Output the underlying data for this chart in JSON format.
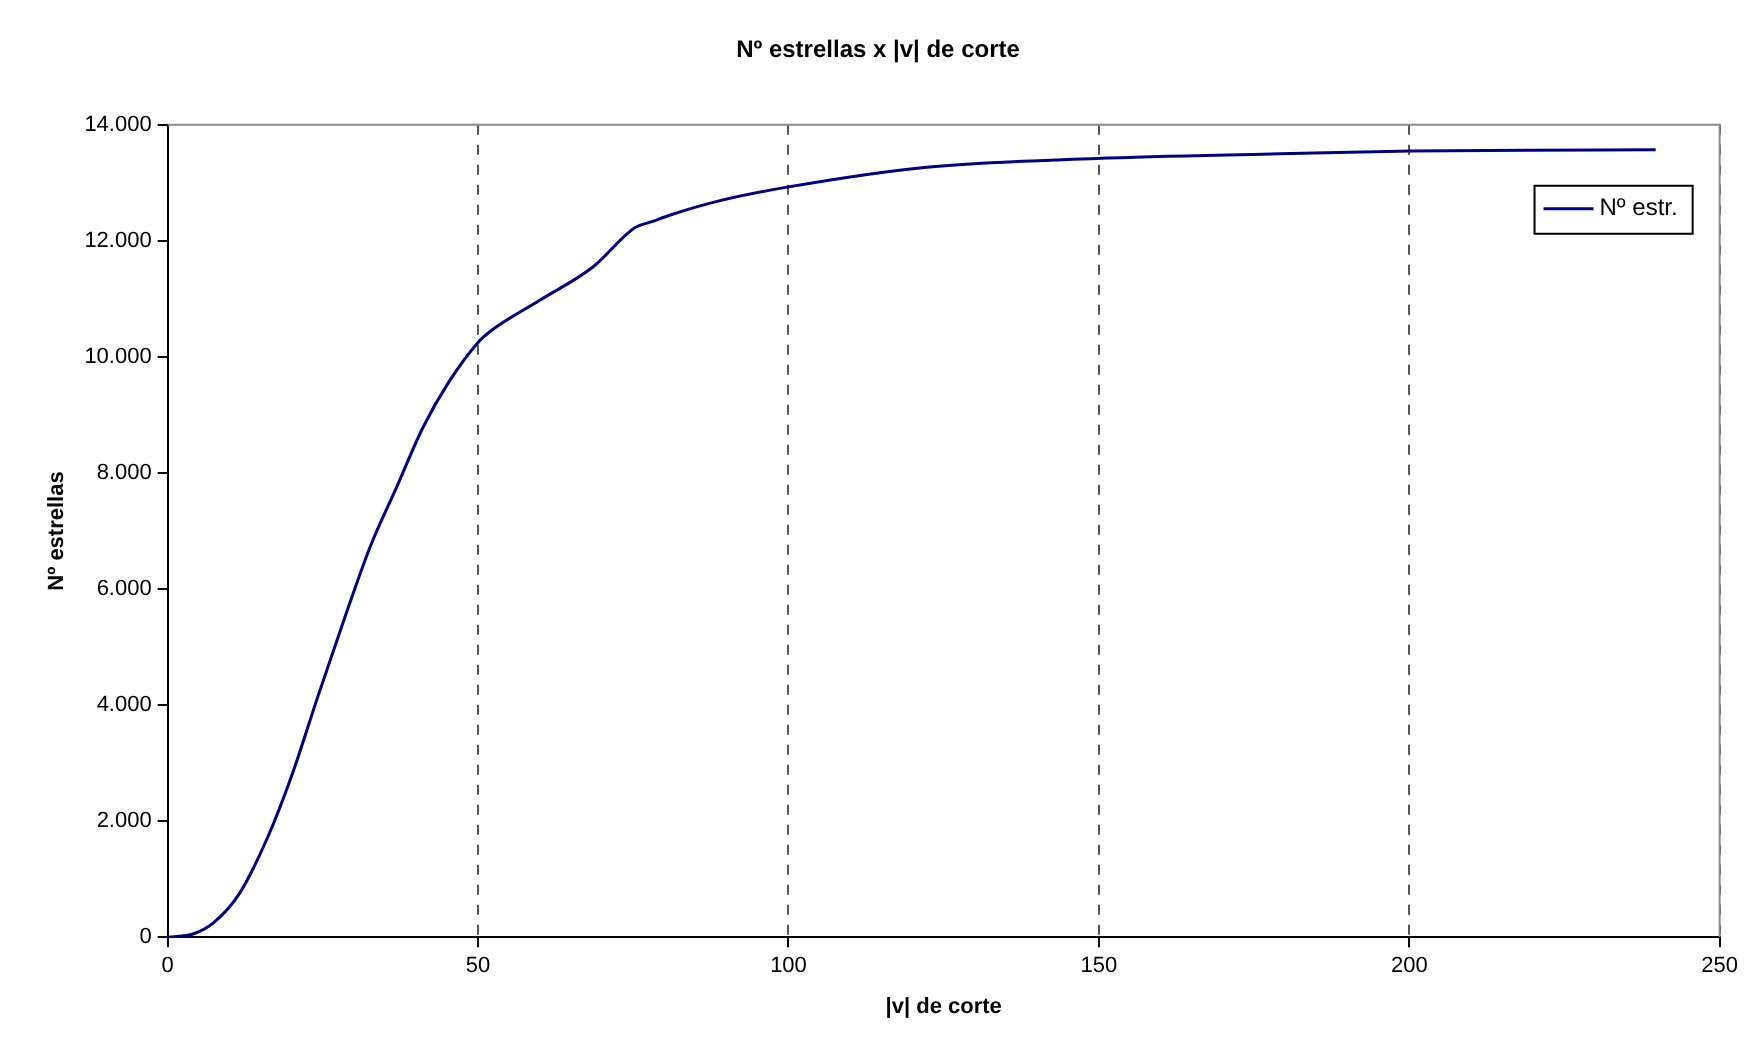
{
  "chart_data": {
    "type": "line",
    "title": "Nº estrellas x |v| de corte",
    "xlabel": "|v| de corte",
    "ylabel": "Nº estrellas",
    "series": [
      {
        "name": "Nº estr.",
        "color": "#000080",
        "x": [
          0,
          4.2,
          7.4,
          11.6,
          16.3,
          20,
          24.2,
          28.5,
          32.7,
          36.9,
          41.1,
          45.3,
          50,
          52.1,
          60,
          68.5,
          75.3,
          78,
          81.1,
          88.5,
          100,
          122.3,
          149.6,
          179.2,
          200.2,
          239.7
        ],
        "values": [
          0,
          60,
          250,
          760,
          1770,
          2790,
          4150,
          5500,
          6750,
          7760,
          8780,
          9570,
          10250,
          10450,
          10980,
          11550,
          12230,
          12330,
          12450,
          12680,
          12930,
          13270,
          13420,
          13500,
          13550,
          13570
        ]
      }
    ],
    "xlim": [
      0,
      250
    ],
    "xticks": [
      0,
      50,
      100,
      150,
      200,
      250
    ],
    "ylim": [
      0,
      14000
    ],
    "yticks": [
      {
        "value": 0,
        "label": "0"
      },
      {
        "value": 2000,
        "label": "2.000"
      },
      {
        "value": 4000,
        "label": "4.000"
      },
      {
        "value": 6000,
        "label": "6.000"
      },
      {
        "value": 8000,
        "label": "8.000"
      },
      {
        "value": 10000,
        "label": "10.000"
      },
      {
        "value": 12000,
        "label": "12.000"
      },
      {
        "value": 14000,
        "label": "14.000"
      }
    ],
    "grid": "x",
    "legend": "top right",
    "marker": "none",
    "line_style": "solid"
  }
}
